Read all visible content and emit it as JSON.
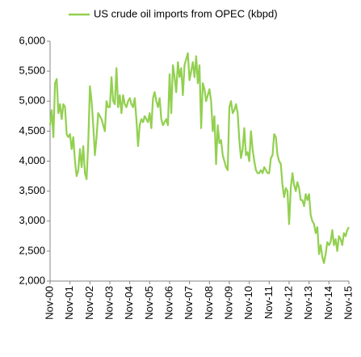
{
  "chart_data": {
    "type": "line",
    "categories": [
      "Nov-00",
      null,
      null,
      null,
      null,
      null,
      null,
      null,
      null,
      null,
      null,
      null,
      "Nov-01",
      null,
      null,
      null,
      null,
      null,
      null,
      null,
      null,
      null,
      null,
      null,
      "Nov-02",
      null,
      null,
      null,
      null,
      null,
      null,
      null,
      null,
      null,
      null,
      null,
      "Nov-03",
      null,
      null,
      null,
      null,
      null,
      null,
      null,
      null,
      null,
      null,
      null,
      "Nov-04",
      null,
      null,
      null,
      null,
      null,
      null,
      null,
      null,
      null,
      null,
      null,
      "Nov-05",
      null,
      null,
      null,
      null,
      null,
      null,
      null,
      null,
      null,
      null,
      null,
      "Nov-06",
      null,
      null,
      null,
      null,
      null,
      null,
      null,
      null,
      null,
      null,
      null,
      "Nov-07",
      null,
      null,
      null,
      null,
      null,
      null,
      null,
      null,
      null,
      null,
      null,
      "Nov-08",
      null,
      null,
      null,
      null,
      null,
      null,
      null,
      null,
      null,
      null,
      null,
      "Nov-09",
      null,
      null,
      null,
      null,
      null,
      null,
      null,
      null,
      null,
      null,
      null,
      "Nov-10",
      null,
      null,
      null,
      null,
      null,
      null,
      null,
      null,
      null,
      null,
      null,
      "Nov-11",
      null,
      null,
      null,
      null,
      null,
      null,
      null,
      null,
      null,
      null,
      null,
      "Nov-12",
      null,
      null,
      null,
      null,
      null,
      null,
      null,
      null,
      null,
      null,
      null,
      "Nov-13",
      null,
      null,
      null,
      null,
      null,
      null,
      null,
      null,
      null,
      null,
      null,
      "Nov-14",
      null,
      null,
      null,
      null,
      null,
      null,
      null,
      null,
      null,
      null,
      null,
      "Nov-15"
    ],
    "series": [
      {
        "name": "US crude oil imports from OPEC (kbpd)",
        "color": "#92d050",
        "values": [
          4600,
          4850,
          4400,
          5300,
          5370,
          4800,
          4950,
          4700,
          4950,
          4900,
          4450,
          4400,
          4450,
          4200,
          4400,
          4000,
          3750,
          3850,
          4200,
          3900,
          4250,
          3800,
          3700,
          4300,
          5250,
          5000,
          4600,
          4100,
          4400,
          4800,
          4750,
          4700,
          4600,
          4500,
          5000,
          4900,
          4900,
          5400,
          5000,
          4950,
          5550,
          4900,
          5100,
          4800,
          5100,
          4950,
          4900,
          5000,
          5050,
          4950,
          4900,
          5050,
          4700,
          4250,
          4600,
          4700,
          4650,
          4750,
          4700,
          4650,
          4800,
          4550,
          5050,
          5150,
          5000,
          4900,
          5050,
          4700,
          4600,
          4650,
          4700,
          4600,
          5450,
          4800,
          5600,
          5400,
          5150,
          5650,
          5400,
          5550,
          5100,
          5600,
          5700,
          5800,
          5350,
          5500,
          5650,
          5400,
          5750,
          5300,
          5600,
          4550,
          5300,
          5200,
          5000,
          5100,
          5200,
          5000,
          4500,
          4750,
          3950,
          4600,
          4300,
          4350,
          4100,
          4000,
          3900,
          3850,
          4900,
          5000,
          4800,
          4850,
          4950,
          4800,
          4350,
          4050,
          4200,
          4550,
          4100,
          4150,
          4000,
          4500,
          4200,
          4000,
          3850,
          3800,
          3800,
          3850,
          3800,
          3900,
          3850,
          3800,
          3800,
          4050,
          4100,
          4450,
          4400,
          4100,
          4000,
          3950,
          3600,
          3400,
          3550,
          3500,
          2950,
          3550,
          3800,
          3600,
          3500,
          3650,
          3550,
          3350,
          3350,
          3250,
          3450,
          3350,
          3450,
          3100,
          3000,
          2950,
          2800,
          2900,
          2450,
          2600,
          2400,
          2300,
          2450,
          2650,
          2600,
          2650,
          2850,
          2600,
          2700,
          2500,
          2750,
          2700,
          2600,
          2800,
          2750,
          2850,
          2900
        ]
      }
    ],
    "ylim": [
      2000,
      6000
    ],
    "yticks": [
      {
        "value": 2000,
        "label": "2,000"
      },
      {
        "value": 2500,
        "label": "2,500"
      },
      {
        "value": 3000,
        "label": "3,000"
      },
      {
        "value": 3500,
        "label": "3,500"
      },
      {
        "value": 4000,
        "label": "4,000"
      },
      {
        "value": 4500,
        "label": "4,500"
      },
      {
        "value": 5000,
        "label": "5,000"
      },
      {
        "value": 5500,
        "label": "5,500"
      },
      {
        "value": 6000,
        "label": "6,000"
      }
    ],
    "grid": false,
    "legend": "top"
  }
}
